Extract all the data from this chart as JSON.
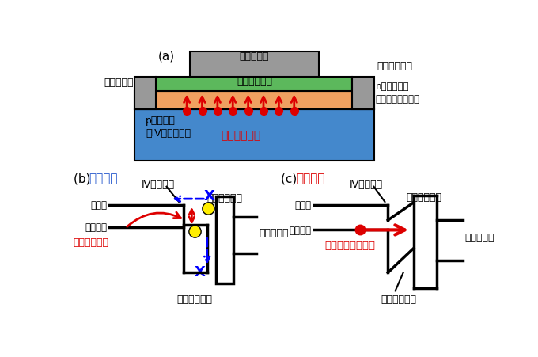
{
  "bg_color": "#ffffff",
  "title_a": "(a)",
  "title_b_black": "(b) ",
  "title_b_blue": "オフ状態",
  "title_c_black": "(c) ",
  "title_c_red": "オン状態",
  "label_source": "ソース電極",
  "label_drain": "ドレイン電極",
  "label_gate_electrode": "ゲート電極",
  "label_gate_insulator": "ゲート絶縁膜",
  "label_n_channel": "n型チャネル\n（酸化物半導体）",
  "label_p_source": "p型ソース\n（IV族半導体）",
  "label_tunneling": "トンネリング",
  "label_iv_b": "IV族半導体",
  "label_gate_ins_b": "ゲート絶縁膜",
  "label_gate_elec_b": "ゲート電極",
  "label_cond_b": "伝導帯",
  "label_val_b": "価電子帯",
  "label_oxide_b": "酸化物半導体",
  "label_barrier": "実効障壁高さ",
  "label_iv_c": "IV族半導体",
  "label_gate_ins_c": "ゲート絶縁膜",
  "label_gate_elec_c": "ゲート電極",
  "label_cond_c": "伝導帯",
  "label_val_c": "価電子帯",
  "label_oxide_c": "酸化物半導体",
  "label_quantum": "量子トンネリング",
  "color_gray": "#999999",
  "color_green": "#5cb85c",
  "color_orange": "#f0a060",
  "color_blue": "#4488cc",
  "color_red": "#dd0000",
  "color_yellow": "#ffee00",
  "color_black": "#000000",
  "color_blue_text": "#2255cc",
  "color_red_text": "#dd0000"
}
